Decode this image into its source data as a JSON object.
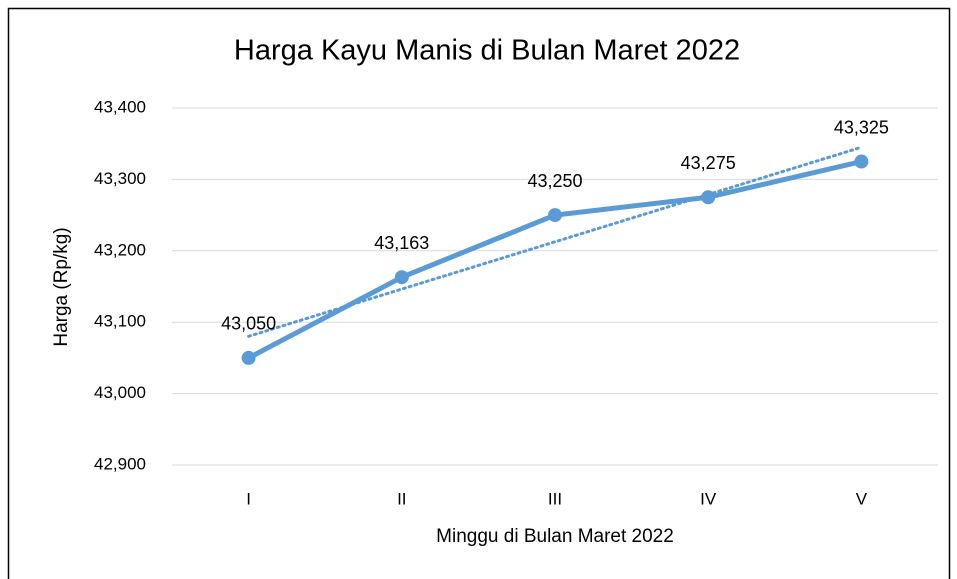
{
  "chart_data": {
    "type": "line",
    "title": "Harga Kayu Manis di Bulan Maret 2022",
    "xlabel": "Minggu di Bulan Maret 2022",
    "ylabel": "Harga (Rp/kg)",
    "categories": [
      "I",
      "II",
      "III",
      "IV",
      "V"
    ],
    "series": [
      {
        "name": null,
        "color": "#5b9bd5",
        "values": [
          43050,
          43163,
          43250,
          43275,
          43325
        ],
        "value_labels": [
          "43,050",
          "43,163",
          "43,250",
          "43,275",
          "43,325"
        ]
      }
    ],
    "ylim": [
      42900,
      43400
    ],
    "yticks": [
      {
        "value": 42900,
        "label": "42,900"
      },
      {
        "value": 43000,
        "label": "43,000"
      },
      {
        "value": 43100,
        "label": "43,100"
      },
      {
        "value": 43200,
        "label": "43,200"
      },
      {
        "value": 43300,
        "label": "43,300"
      },
      {
        "value": 43400,
        "label": "43,400"
      }
    ],
    "grid": true,
    "trendline": "linear"
  }
}
